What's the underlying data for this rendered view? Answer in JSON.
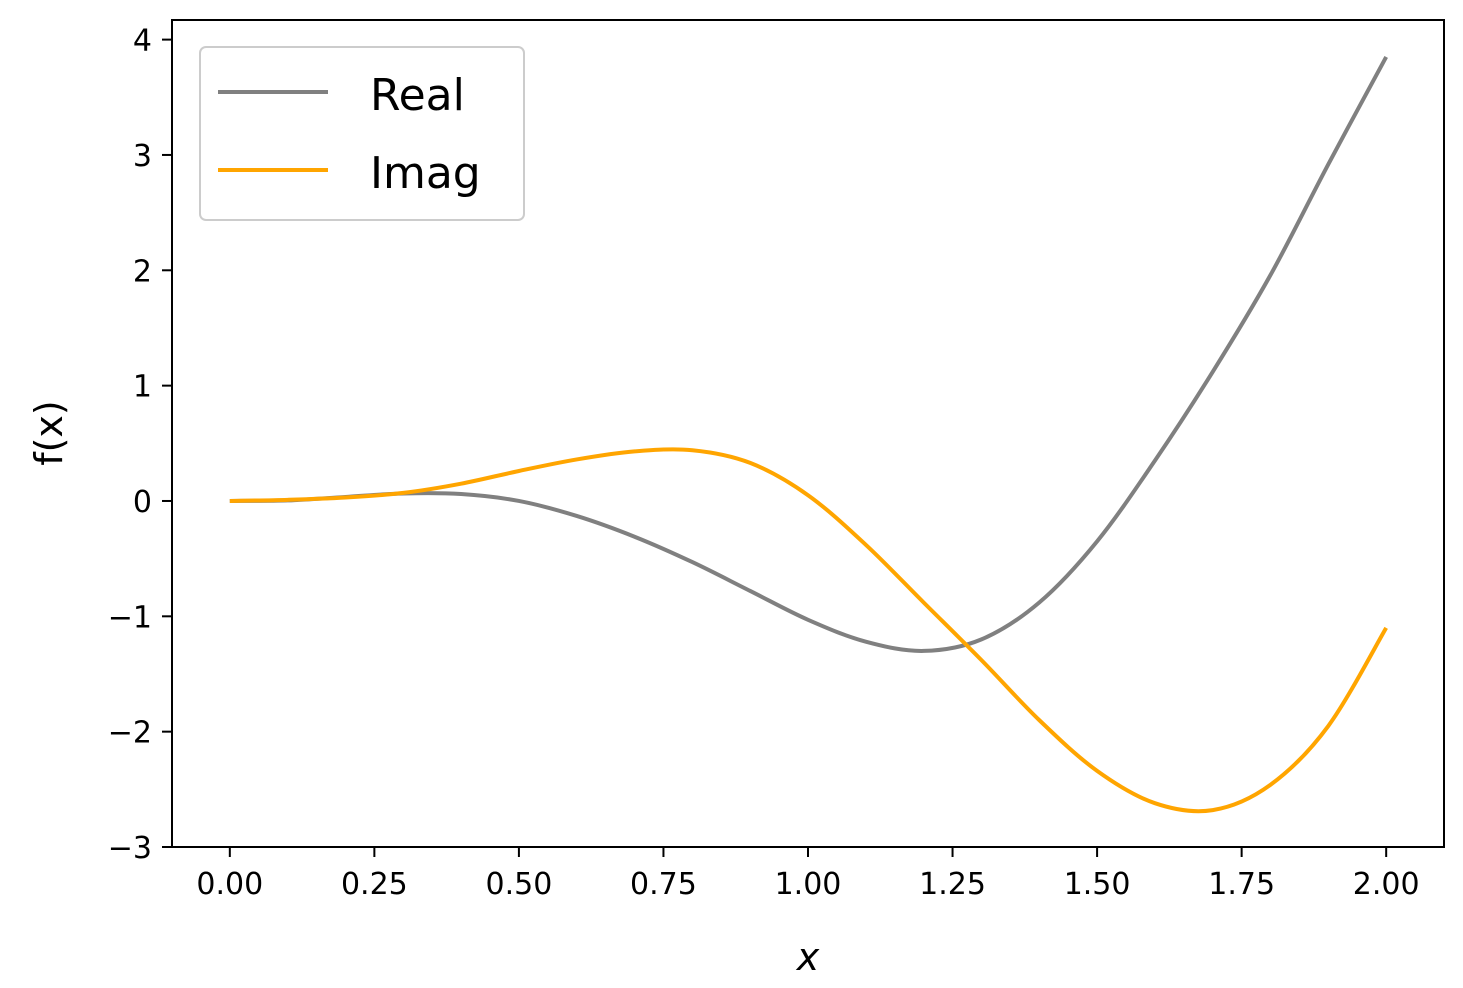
{
  "chart_data": {
    "type": "line",
    "title": "",
    "xlabel": "x",
    "ylabel": "f(x)",
    "xlim": [
      -0.1,
      2.1
    ],
    "ylim": [
      -3,
      4.17
    ],
    "xticks": [
      0.0,
      0.25,
      0.5,
      0.75,
      1.0,
      1.25,
      1.5,
      1.75,
      2.0
    ],
    "xtick_labels": [
      "0.00",
      "0.25",
      "0.50",
      "0.75",
      "1.00",
      "1.25",
      "1.50",
      "1.75",
      "2.00"
    ],
    "yticks": [
      -3,
      -2,
      -1,
      0,
      1,
      2,
      3,
      4
    ],
    "ytick_labels": [
      "−3",
      "−2",
      "−1",
      "0",
      "1",
      "2",
      "3",
      "4"
    ],
    "grid": false,
    "legend_position": "top-left",
    "series": [
      {
        "name": "Real",
        "color": "#808080",
        "x": [
          0,
          0.1,
          0.2,
          0.3,
          0.4,
          0.5,
          0.6,
          0.7,
          0.8,
          0.9,
          1.0,
          1.1,
          1.2,
          1.3,
          1.4,
          1.5,
          1.6,
          1.7,
          1.8,
          1.9,
          2.0
        ],
        "y": [
          0,
          0.005,
          0.035,
          0.065,
          0.06,
          0.0,
          -0.13,
          -0.31,
          -0.53,
          -0.78,
          -1.03,
          -1.22,
          -1.3,
          -1.2,
          -0.88,
          -0.35,
          0.35,
          1.12,
          1.96,
          2.92,
          3.85
        ]
      },
      {
        "name": "Imag",
        "color": "#ffa500",
        "x": [
          0,
          0.1,
          0.2,
          0.3,
          0.4,
          0.5,
          0.6,
          0.7,
          0.8,
          0.9,
          1.0,
          1.1,
          1.2,
          1.3,
          1.4,
          1.5,
          1.6,
          1.7,
          1.8,
          1.9,
          2.0
        ],
        "y": [
          0,
          0.01,
          0.03,
          0.07,
          0.15,
          0.26,
          0.36,
          0.43,
          0.44,
          0.33,
          0.05,
          -0.38,
          -0.88,
          -1.38,
          -1.9,
          -2.34,
          -2.62,
          -2.68,
          -2.46,
          -1.95,
          -1.1
        ]
      }
    ]
  }
}
